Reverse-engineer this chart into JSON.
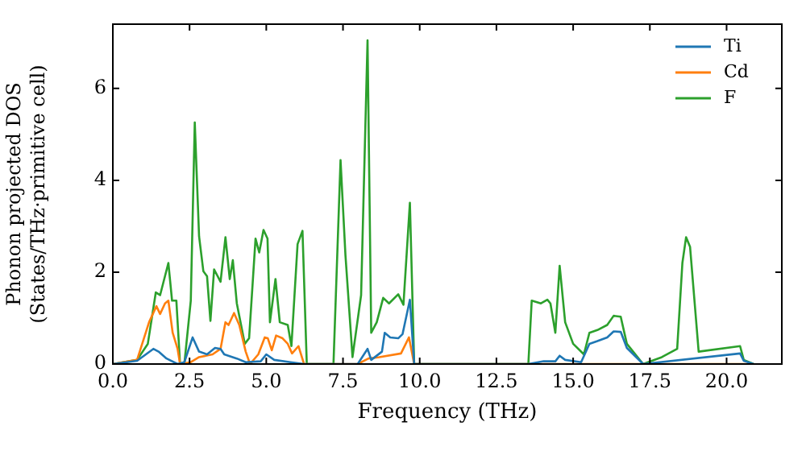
{
  "chart_data": {
    "type": "line",
    "xlabel": "Frequency (THz)",
    "ylabel": "Phonon projected DOS\n(States/THz·primitive cell)",
    "xlim": [
      0,
      21.8
    ],
    "xticks": [
      {
        "value": 0,
        "label": "0.0"
      },
      {
        "value": 2.5,
        "label": "2.5"
      },
      {
        "value": 5,
        "label": "5.0"
      },
      {
        "value": 7.5,
        "label": "7.5"
      },
      {
        "value": 10,
        "label": "10.0"
      },
      {
        "value": 12.5,
        "label": "12.5"
      },
      {
        "value": 15,
        "label": "15.0"
      },
      {
        "value": 17.5,
        "label": "17.5"
      },
      {
        "value": 20,
        "label": "20.0"
      }
    ],
    "ylim": [
      0,
      7.4
    ],
    "yticks": [
      0,
      2,
      4,
      6
    ],
    "grid": false,
    "legend": "top right",
    "marker": "none",
    "line_style": "solid",
    "series": [
      {
        "name": "Ti",
        "color": "#1f77b4",
        "x": [
          0,
          0.79,
          1.32,
          1.49,
          1.75,
          2.11,
          2.33,
          2.6,
          2.81,
          3.07,
          3.33,
          3.51,
          3.63,
          4.04,
          4.33,
          4.82,
          5.0,
          5.26,
          5.79,
          6.23,
          7.98,
          8.3,
          8.42,
          8.77,
          8.86,
          9.04,
          9.3,
          9.44,
          9.68,
          9.82,
          13.54,
          14.04,
          14.42,
          14.56,
          14.74,
          15.26,
          15.53,
          15.79,
          16.11,
          16.32,
          16.55,
          16.75,
          17.28,
          20.44,
          20.56,
          20.88
        ],
        "values": [
          0,
          0.07,
          0.33,
          0.27,
          0.12,
          0,
          0.04,
          0.58,
          0.27,
          0.21,
          0.35,
          0.33,
          0.21,
          0.12,
          0.04,
          0.06,
          0.21,
          0.09,
          0.04,
          0,
          0,
          0.33,
          0.09,
          0.27,
          0.68,
          0.58,
          0.56,
          0.65,
          1.4,
          0,
          0,
          0.06,
          0.06,
          0.18,
          0.09,
          0.04,
          0.44,
          0.5,
          0.58,
          0.71,
          0.7,
          0.35,
          0,
          0.23,
          0.07,
          0
        ]
      },
      {
        "name": "Cd",
        "color": "#ff7f0e",
        "x": [
          0,
          0.79,
          1.18,
          1.42,
          1.54,
          1.7,
          1.81,
          1.95,
          2.11,
          2.19,
          2.54,
          2.81,
          3.25,
          3.51,
          3.67,
          3.77,
          3.95,
          4.12,
          4.33,
          4.47,
          4.74,
          4.95,
          5.05,
          5.18,
          5.32,
          5.53,
          5.7,
          5.84,
          6.05,
          6.23,
          7.98,
          8.33,
          8.68,
          9.39,
          9.65,
          9.82,
          20.88
        ],
        "values": [
          0,
          0.09,
          0.91,
          1.26,
          1.09,
          1.32,
          1.38,
          0.68,
          0.33,
          0,
          0.04,
          0.15,
          0.21,
          0.33,
          0.91,
          0.85,
          1.11,
          0.85,
          0.27,
          0,
          0.21,
          0.58,
          0.56,
          0.3,
          0.62,
          0.56,
          0.44,
          0.23,
          0.39,
          0,
          0,
          0.12,
          0.15,
          0.23,
          0.58,
          0,
          0
        ]
      },
      {
        "name": "F",
        "color": "#2ca02c",
        "x": [
          0,
          0.79,
          1.14,
          1.4,
          1.54,
          1.81,
          1.93,
          2.07,
          2.19,
          2.33,
          2.54,
          2.67,
          2.81,
          2.95,
          3.07,
          3.18,
          3.3,
          3.51,
          3.67,
          3.81,
          3.91,
          4.04,
          4.3,
          4.44,
          4.65,
          4.77,
          4.91,
          5.04,
          5.12,
          5.3,
          5.44,
          5.7,
          5.82,
          6.02,
          6.18,
          6.32,
          7.19,
          7.42,
          7.58,
          7.81,
          8.09,
          8.3,
          8.42,
          8.6,
          8.81,
          9.0,
          9.3,
          9.47,
          9.68,
          9.82,
          13.54,
          13.65,
          13.95,
          14.16,
          14.26,
          14.42,
          14.56,
          14.74,
          15.0,
          15.35,
          15.53,
          15.79,
          16.11,
          16.32,
          16.55,
          16.75,
          17.28,
          17.89,
          18.39,
          18.56,
          18.68,
          18.81,
          19.09,
          20.44,
          20.56,
          20.88
        ],
        "values": [
          0,
          0.09,
          0.44,
          1.56,
          1.5,
          2.2,
          1.38,
          1.38,
          0,
          0,
          1.38,
          5.26,
          2.78,
          2.02,
          1.91,
          0.94,
          2.06,
          1.79,
          2.76,
          1.85,
          2.26,
          1.32,
          0.44,
          0.56,
          2.73,
          2.43,
          2.92,
          2.73,
          0.91,
          1.85,
          0.91,
          0.85,
          0.39,
          2.61,
          2.9,
          0,
          0,
          4.44,
          2.37,
          0.15,
          1.5,
          7.05,
          0.68,
          0.91,
          1.44,
          1.32,
          1.52,
          1.29,
          3.51,
          0,
          0,
          1.38,
          1.32,
          1.4,
          1.32,
          0.68,
          2.14,
          0.91,
          0.44,
          0.21,
          0.68,
          0.74,
          0.85,
          1.05,
          1.03,
          0.44,
          0,
          0.15,
          0.33,
          2.2,
          2.76,
          2.55,
          0.27,
          0.39,
          0.09,
          0
        ]
      }
    ]
  }
}
